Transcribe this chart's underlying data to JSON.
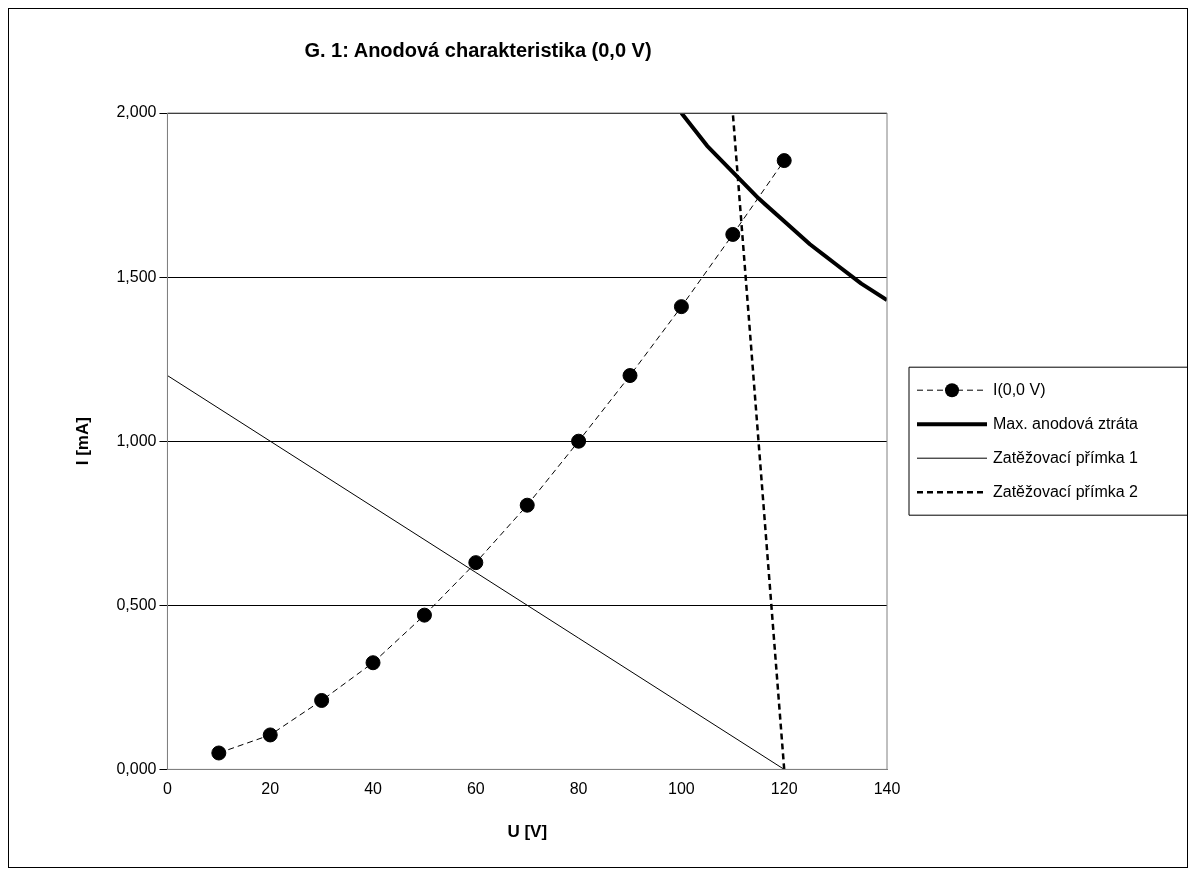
{
  "chart_data": {
    "type": "line",
    "title": "G. 1: Anodová charakteristika (0,0 V)",
    "xlabel": "U [V]",
    "ylabel": "I [mA]",
    "xlim": [
      0,
      140
    ],
    "xticks": [
      0,
      20,
      40,
      60,
      80,
      100,
      120,
      140
    ],
    "ylim": [
      0,
      2
    ],
    "yticks": [
      {
        "value": 0,
        "label": "0,000"
      },
      {
        "value": 0.5,
        "label": "0,500"
      },
      {
        "value": 1,
        "label": "1,000"
      },
      {
        "value": 1.5,
        "label": "1,500"
      },
      {
        "value": 2,
        "label": "2,000"
      }
    ],
    "grid": "y",
    "legend": "right",
    "series": [
      {
        "name": "I(0,0 V)",
        "color": "#000000",
        "marker": "circle",
        "line_style": "dashed",
        "x": [
          10,
          20,
          30,
          40,
          50,
          60,
          70,
          80,
          90,
          100,
          110,
          120
        ],
        "values": [
          0.05,
          0.105,
          0.21,
          0.325,
          0.47,
          0.63,
          0.805,
          1.0,
          1.2,
          1.41,
          1.63,
          1.855
        ]
      },
      {
        "name": "Max. anodová ztráta",
        "color": "#000000",
        "marker": "none",
        "line_style": "solid",
        "x": [
          100,
          105,
          110,
          115,
          120,
          125,
          130,
          135,
          140
        ],
        "values": [
          2.0,
          1.9,
          1.82,
          1.74,
          1.67,
          1.6,
          1.54,
          1.48,
          1.43
        ]
      },
      {
        "name": "Zatěžovací přímka 1",
        "color": "#000000",
        "marker": "none",
        "line_style": "solid",
        "x": [
          0,
          20,
          40,
          60,
          80,
          100,
          120
        ],
        "values": [
          1.2,
          1.0,
          0.8,
          0.6,
          0.4,
          0.2,
          0
        ]
      },
      {
        "name": "Zatěžovací přímka 2",
        "color": "#000000",
        "marker": "none",
        "line_style": "dashed",
        "x": [
          120,
          117.5,
          115,
          112.5,
          110
        ],
        "values": [
          0,
          0.5,
          1.0,
          1.5,
          2.0
        ]
      }
    ]
  }
}
